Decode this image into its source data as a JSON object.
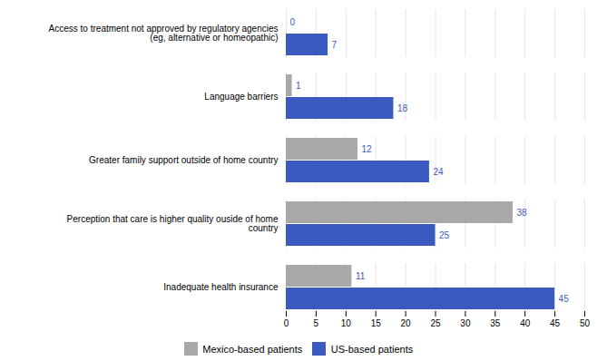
{
  "chart_data": {
    "type": "bar",
    "orientation": "horizontal",
    "categories": [
      "Inadequate health insurance",
      "Perception that care is higher quality ouside of home\ncountry",
      "Greater family support outside of home country",
      "Language barriers",
      "Access to treatment not approved by regulatory agencies\n(eg, alternative or homeopathic)"
    ],
    "series": [
      {
        "name": "Mexico-based patients",
        "color": "#a8a8a8",
        "values": [
          11,
          38,
          12,
          1,
          0
        ]
      },
      {
        "name": "US-based patients",
        "color": "#3a5abf",
        "values": [
          45,
          25,
          24,
          18,
          7
        ]
      }
    ],
    "xlim": [
      0,
      50
    ],
    "xticks": [
      0,
      5,
      10,
      15,
      20,
      25,
      30,
      35,
      40,
      45,
      50
    ],
    "grid": true,
    "data_labels": true,
    "legend": "bottom"
  }
}
